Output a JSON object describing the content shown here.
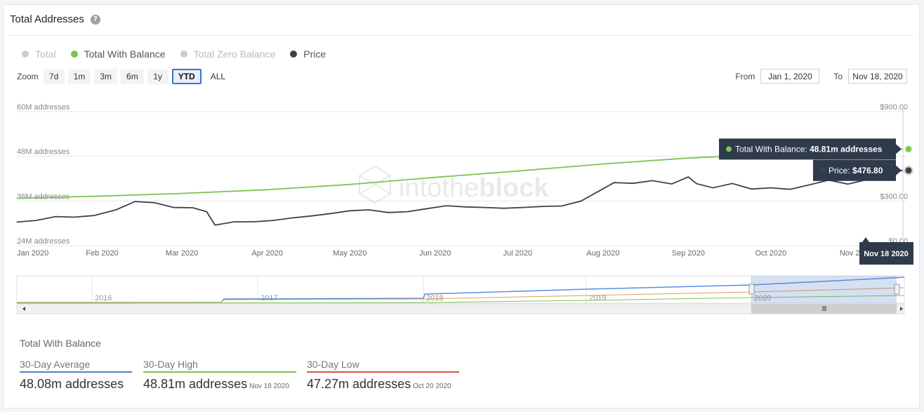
{
  "header": {
    "title": "Total Addresses",
    "help_icon": "?"
  },
  "legend": [
    {
      "label": "Total",
      "color": "#cccccc",
      "text_color": "#bbbbbb"
    },
    {
      "label": "Total With Balance",
      "color": "#7cc452",
      "text_color": "#555555"
    },
    {
      "label": "Total Zero Balance",
      "color": "#cccccc",
      "text_color": "#bbbbbb"
    },
    {
      "label": "Price",
      "color": "#3f4245",
      "text_color": "#555555"
    }
  ],
  "zoom": {
    "label": "Zoom",
    "buttons": [
      "7d",
      "1m",
      "3m",
      "6m",
      "1y",
      "YTD",
      "ALL"
    ],
    "active": "YTD"
  },
  "range": {
    "from_label": "From",
    "from": "Jan 1, 2020",
    "to_label": "To",
    "to": "Nov 18, 2020"
  },
  "watermark": {
    "a": "into",
    "b": "the",
    "c": "block"
  },
  "chart_data": {
    "type": "line",
    "y_left": {
      "ticks": [
        "60M addresses",
        "48M addresses",
        "36M addresses",
        "24M addresses"
      ],
      "values": [
        60,
        48,
        36,
        24
      ],
      "range": [
        24,
        60
      ],
      "unit": "M addresses"
    },
    "y_right": {
      "ticks": [
        "$900.00",
        "$300.00",
        "$0.00"
      ],
      "range": [
        0,
        900
      ]
    },
    "x_labels": [
      "Jan 2020",
      "Feb 2020",
      "Mar 2020",
      "Apr 2020",
      "May 2020",
      "Jun 2020",
      "Jul 2020",
      "Aug 2020",
      "Sep 2020",
      "Oct 2020",
      "Nov 2020"
    ],
    "series": [
      {
        "name": "Total With Balance",
        "color": "#7cc452",
        "axis": "left",
        "x": [
          "2020-01-01",
          "2020-02-01",
          "2020-03-01",
          "2020-04-01",
          "2020-05-01",
          "2020-06-01",
          "2020-07-01",
          "2020-08-01",
          "2020-09-01",
          "2020-10-01",
          "2020-11-01",
          "2020-11-18"
        ],
        "values": [
          35.6,
          36.2,
          36.9,
          37.9,
          39.3,
          41.2,
          42.9,
          44.8,
          46.4,
          47.4,
          48.3,
          48.81
        ]
      },
      {
        "name": "Price",
        "color": "#3f4245",
        "axis": "right",
        "x": [
          "2020-01-01",
          "2020-01-08",
          "2020-01-15",
          "2020-01-22",
          "2020-01-29",
          "2020-02-06",
          "2020-02-13",
          "2020-02-20",
          "2020-02-27",
          "2020-03-05",
          "2020-03-10",
          "2020-03-13",
          "2020-03-20",
          "2020-03-27",
          "2020-04-03",
          "2020-04-10",
          "2020-04-17",
          "2020-04-24",
          "2020-05-01",
          "2020-05-08",
          "2020-05-15",
          "2020-05-22",
          "2020-05-29",
          "2020-06-05",
          "2020-06-12",
          "2020-06-19",
          "2020-06-26",
          "2020-07-03",
          "2020-07-10",
          "2020-07-17",
          "2020-07-24",
          "2020-07-31",
          "2020-08-05",
          "2020-08-12",
          "2020-08-19",
          "2020-08-26",
          "2020-09-01",
          "2020-09-04",
          "2020-09-10",
          "2020-09-17",
          "2020-09-24",
          "2020-10-01",
          "2020-10-08",
          "2020-10-15",
          "2020-10-22",
          "2020-10-29",
          "2020-11-05",
          "2020-11-10",
          "2020-11-18"
        ],
        "values": [
          130,
          141,
          167,
          163,
          174,
          212,
          268,
          260,
          228,
          226,
          200,
          110,
          132,
          132,
          141,
          158,
          171,
          187,
          206,
          212,
          194,
          200,
          220,
          240,
          232,
          228,
          223,
          228,
          235,
          238,
          271,
          343,
          395,
          390,
          408,
          386,
          433,
          388,
          360,
          389,
          352,
          360,
          350,
          380,
          412,
          385,
          415,
          455,
          476.8
        ]
      }
    ],
    "tooltip": {
      "series": "Total With Balance",
      "label": "Total With Balance",
      "value": "48.81m addresses",
      "price_label": "Price",
      "price_value": "$476.80",
      "date": "Nov 18 2020"
    },
    "navigator": {
      "years": [
        "2016",
        "2017",
        "2018",
        "2019",
        "2020"
      ]
    }
  },
  "stats": {
    "title": "Total With Balance",
    "items": [
      {
        "label": "30-Day Average",
        "value": "48.08m addresses",
        "date": "",
        "color": "#4d83d6"
      },
      {
        "label": "30-Day High",
        "value": "48.81m addresses",
        "date": "Nov 18 2020",
        "color": "#7cc452"
      },
      {
        "label": "30-Day Low",
        "value": "47.27m addresses",
        "date": "Oct 20 2020",
        "color": "#d9553f"
      }
    ]
  }
}
